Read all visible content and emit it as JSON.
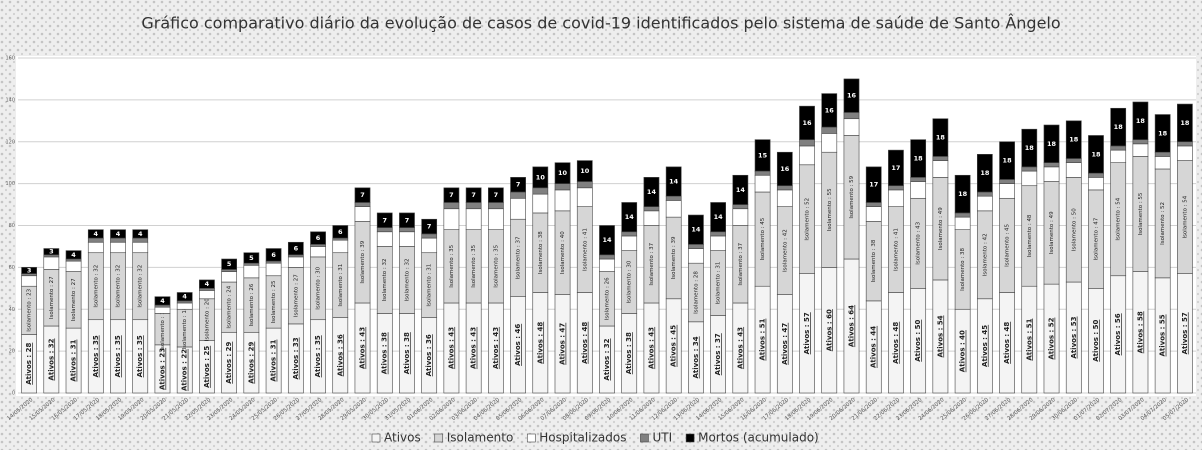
{
  "chart_data": {
    "type": "stacked_bar",
    "title": "Gráfico comparativo diário da evolução de casos de covid-19 identificados pelo sistema de saúde de Santo Ângelo",
    "categories": [
      "14/05/2020",
      "15/05/2020",
      "16/05/2020",
      "17/05/2020",
      "18/05/2020",
      "19/05/2020",
      "20/05/2020",
      "21/05/2020",
      "22/05/2020",
      "23/05/2020",
      "24/05/2020",
      "25/05/2020",
      "26/05/2020",
      "27/05/2020",
      "28/05/2020",
      "29/05/2020",
      "30/05/2020",
      "31/05/2020",
      "01/06/2020",
      "02/06/2020",
      "03/06/2020",
      "04/06/2020",
      "05/06/2020",
      "06/06/2020",
      "07/06/2020",
      "08/06/2020",
      "09/06/2020",
      "10/06/2020",
      "11/06/2020",
      "12/06/2020",
      "13/06/2020",
      "14/06/2020",
      "15/06/2020",
      "16/06/2020",
      "17/06/2020",
      "18/06/2020",
      "19/06/2020",
      "20/06/2020",
      "21/06/2020",
      "22/06/2020",
      "23/06/2020",
      "24/06/2020",
      "25/06/2020",
      "26/06/2020",
      "27/06/2020",
      "28/06/2020",
      "29/06/2020",
      "30/06/2020",
      "01/07/2020",
      "02/07/2020",
      "03/07/2020",
      "04/07/2020",
      "05/07/2020"
    ],
    "ylim": [
      0,
      160
    ],
    "yticks": [
      0,
      20,
      40,
      60,
      80,
      100,
      120,
      140,
      160
    ],
    "grid": true,
    "series": [
      {
        "name": "Ativos",
        "color": "#f4f4f4",
        "values": [
          28,
          32,
          31,
          35,
          35,
          35,
          23,
          22,
          25,
          29,
          29,
          31,
          33,
          35,
          36,
          43,
          38,
          38,
          36,
          43,
          43,
          43,
          46,
          48,
          47,
          48,
          32,
          38,
          43,
          45,
          34,
          37,
          43,
          51,
          47,
          57,
          60,
          64,
          44,
          48,
          50,
          54,
          40,
          45,
          48,
          51,
          52,
          53,
          50,
          56,
          58,
          55,
          57
        ],
        "value_labels": [
          "Ativos : 28",
          "Ativos : 32",
          "Ativos : 31",
          "Ativos : 35",
          "Ativos : 35",
          "Ativos : 35",
          "Ativos : 23",
          "Ativos : 22",
          "Ativos : 25",
          "Ativos : 29",
          "Ativos : 29",
          "Ativos : 31",
          "Ativos : 33",
          "Ativos : 35",
          "Ativos : 36",
          "Ativos : 43",
          "Ativos : 38",
          "Ativos : 38",
          "Ativos : 36",
          "Ativos : 43",
          "Ativos : 43",
          "Ativos : 43",
          "Ativos : 46",
          "Ativos : 48",
          "Ativos : 47",
          "Ativos : 48",
          "Ativos : 32",
          "Ativos : 38",
          "Ativos : 43",
          "Ativos : 45",
          "Ativos : 34",
          "Ativos : 37",
          "Ativos : 43",
          "Ativos : 51",
          "Ativos : 47",
          "Ativos : 57",
          "Ativos : 60",
          "Ativos : 64",
          "Ativos : 44",
          "Ativos : 48",
          "Ativos : 50",
          "Ativos : 54",
          "Ativos : 40",
          "Ativos : 45",
          "Ativos : 48",
          "Ativos : 51",
          "Ativos : 52",
          "Ativos : 53",
          "Ativos : 50",
          "Ativos : 56",
          "Ativos : 58",
          "Ativos : 55",
          "Ativos : 57"
        ]
      },
      {
        "name": "Isolamento",
        "color": "#d6d6d6",
        "values": [
          23,
          27,
          27,
          32,
          32,
          32,
          15,
          18,
          20,
          24,
          26,
          25,
          27,
          30,
          31,
          39,
          32,
          32,
          31,
          35,
          35,
          35,
          37,
          38,
          40,
          41,
          26,
          30,
          37,
          39,
          28,
          31,
          37,
          45,
          42,
          52,
          55,
          59,
          38,
          41,
          43,
          49,
          38,
          42,
          45,
          48,
          49,
          50,
          47,
          54,
          55,
          52,
          54
        ],
        "value_labels": [
          "Isolamento : 23",
          "Isolamento : 27",
          "Isolamento : 27",
          "Isolamento : 32",
          "Isolamento : 32",
          "Isolamento : 32",
          "Isolamento : 15",
          "Isolamento : 18",
          "Isolamento : 20",
          "Isolamento : 24",
          "Isolamento : 26",
          "Isolamento : 25",
          "Isolamento : 27",
          "Isolamento : 30",
          "Isolamento : 31",
          "Isolamento : 39",
          "Isolamento : 32",
          "Isolamento : 32",
          "Isolamento : 31",
          "Isolamento : 35",
          "Isolamento : 35",
          "Isolamento : 35",
          "Isolamento : 37",
          "Isolamento : 38",
          "Isolamento : 40",
          "Isolamento : 41",
          "Isolamento : 26",
          "Isolamento : 30",
          "Isolamento : 37",
          "Isolamento : 39",
          "Isolamento : 28",
          "Isolamento : 31",
          "Isolamento : 37",
          "Isolamento : 45",
          "Isolamento : 42",
          "Isolamento : 52",
          "Isolamento : 55",
          "Isolamento : 59",
          "Isolamento : 38",
          "Isolamento : 41",
          "Isolamento : 43",
          "Isolamento : 49",
          "Isolamento : 38",
          "Isolamento : 42",
          "Isolamento : 45",
          "Isolamento : 48",
          "Isolamento : 49",
          "Isolamento : 50",
          "Isolamento : 47",
          "Isolamento : 54",
          "Isolamento : 55",
          "Isolamento : 52",
          "Isolamento : 54"
        ]
      },
      {
        "name": "Hospitalizados",
        "color": "#ffffff",
        "values": [
          5,
          6,
          5,
          5,
          5,
          5,
          3,
          3,
          4,
          5,
          6,
          6,
          5,
          5,
          6,
          7,
          7,
          7,
          7,
          10,
          10,
          10,
          10,
          9,
          10,
          9,
          6,
          7,
          7,
          8,
          7,
          7,
          8,
          8,
          8,
          9,
          9,
          8,
          7,
          8,
          8,
          8,
          6,
          7,
          7,
          7,
          7,
          7,
          6,
          6,
          6,
          6,
          7
        ]
      },
      {
        "name": "UTI",
        "color": "#808080",
        "values": [
          1,
          1,
          1,
          2,
          2,
          2,
          1,
          1,
          1,
          1,
          1,
          1,
          1,
          1,
          1,
          2,
          2,
          2,
          2,
          3,
          3,
          3,
          3,
          3,
          3,
          3,
          2,
          2,
          2,
          2,
          2,
          2,
          2,
          2,
          2,
          3,
          3,
          3,
          2,
          2,
          2,
          2,
          2,
          2,
          2,
          2,
          2,
          2,
          2,
          2,
          2,
          2,
          2
        ]
      },
      {
        "name": "Mortos (acumulado)",
        "color": "#000000",
        "values": [
          3,
          3,
          4,
          4,
          4,
          4,
          4,
          4,
          4,
          5,
          5,
          6,
          6,
          6,
          6,
          7,
          7,
          7,
          7,
          7,
          7,
          7,
          7,
          10,
          10,
          10,
          14,
          14,
          14,
          14,
          14,
          14,
          14,
          15,
          16,
          16,
          16,
          16,
          17,
          17,
          18,
          18,
          18,
          18,
          18,
          18,
          18,
          18,
          18,
          18,
          18,
          18,
          18
        ]
      }
    ]
  }
}
